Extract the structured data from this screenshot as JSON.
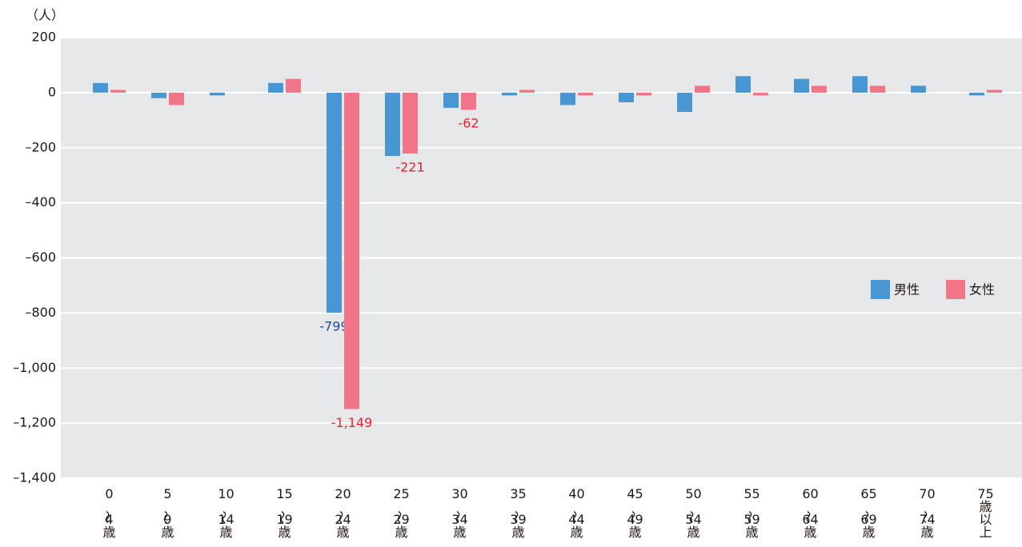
{
  "chart_data": {
    "type": "bar",
    "y_unit": "（人）",
    "categories": [
      "0〜4歳",
      "5〜9歳",
      "10〜14歳",
      "15〜19歳",
      "20〜24歳",
      "25〜29歳",
      "30〜34歳",
      "35〜39歳",
      "40〜44歳",
      "45〜49歳",
      "50〜54歳",
      "55〜59歳",
      "60〜64歳",
      "65〜69歳",
      "70〜74歳",
      "75歳以上"
    ],
    "series": [
      {
        "name": "男性",
        "color": "#4896d2",
        "label_color": "#1f4f9c",
        "values": [
          35,
          -20,
          -10,
          35,
          -799,
          -230,
          -55,
          -10,
          -45,
          -35,
          -70,
          60,
          50,
          60,
          25,
          -10
        ],
        "value_labels": [
          null,
          null,
          null,
          null,
          "-799",
          null,
          null,
          null,
          null,
          null,
          null,
          null,
          null,
          null,
          null,
          null
        ]
      },
      {
        "name": "女性",
        "color": "#f27489",
        "label_color": "#e8202e",
        "values": [
          10,
          -45,
          0,
          50,
          -1149,
          -221,
          -62,
          10,
          -10,
          -10,
          25,
          -10,
          25,
          25,
          0,
          10
        ],
        "value_labels": [
          null,
          null,
          null,
          null,
          "-1,149",
          "-221",
          "-62",
          null,
          null,
          null,
          null,
          null,
          null,
          null,
          null,
          null
        ]
      }
    ],
    "ylim": [
      -1400,
      200
    ],
    "yticks": [
      200,
      0,
      {
        "value": -200,
        "label": "–200"
      },
      {
        "value": -400,
        "label": "–400"
      },
      {
        "value": -600,
        "label": "–600"
      },
      {
        "value": -800,
        "label": "–800"
      },
      {
        "value": -1000,
        "label": "–1,000"
      },
      {
        "value": -1200,
        "label": "–1,200"
      },
      {
        "value": -1400,
        "label": "–1,400"
      }
    ],
    "grid": true,
    "legend": "right"
  }
}
